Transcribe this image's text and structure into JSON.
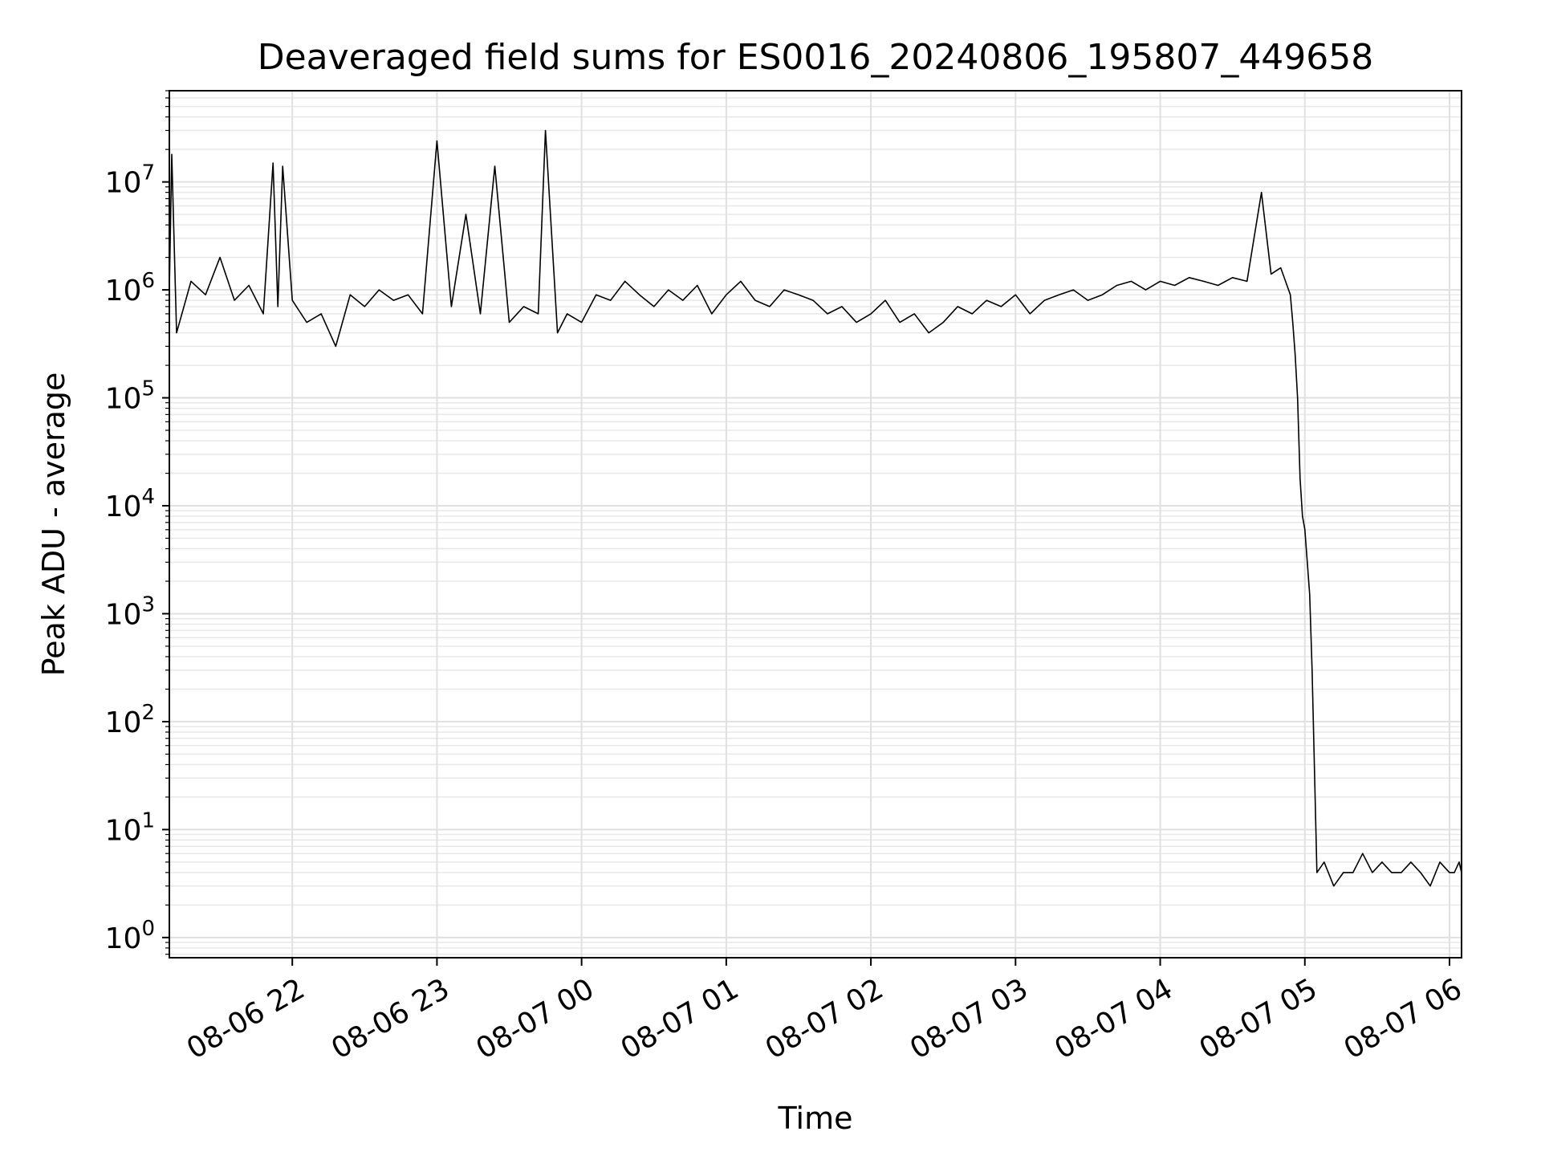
{
  "chart_data": {
    "type": "line",
    "title": "Deaveraged field sums for ES0016_20240806_195807_449658",
    "xlabel": "Time",
    "ylabel": "Peak ADU - average",
    "yscale": "log",
    "grid": true,
    "grid_minor": true,
    "xlim": [
      "2024-08-06 21:09",
      "2024-08-07 06:05"
    ],
    "ylim": [
      0.65,
      70000000
    ],
    "x_ticks": [
      "08-06 22",
      "08-06 23",
      "08-07 00",
      "08-07 01",
      "08-07 02",
      "08-07 03",
      "08-07 04",
      "08-07 05",
      "08-07 06"
    ],
    "y_ticks": [
      {
        "base": "10",
        "exp": "0"
      },
      {
        "base": "10",
        "exp": "1"
      },
      {
        "base": "10",
        "exp": "2"
      },
      {
        "base": "10",
        "exp": "3"
      },
      {
        "base": "10",
        "exp": "4"
      },
      {
        "base": "10",
        "exp": "5"
      },
      {
        "base": "10",
        "exp": "6"
      },
      {
        "base": "10",
        "exp": "7"
      }
    ],
    "line_color": "#000000",
    "series": [
      {
        "x": [
          "2024-08-06 21:09",
          "2024-08-06 21:10",
          "2024-08-06 21:12",
          "2024-08-06 21:18",
          "2024-08-06 21:24",
          "2024-08-06 21:30",
          "2024-08-06 21:36",
          "2024-08-06 21:42",
          "2024-08-06 21:48",
          "2024-08-06 21:52",
          "2024-08-06 21:54",
          "2024-08-06 21:56",
          "2024-08-06 22:00",
          "2024-08-06 22:06",
          "2024-08-06 22:12",
          "2024-08-06 22:18",
          "2024-08-06 22:24",
          "2024-08-06 22:30",
          "2024-08-06 22:36",
          "2024-08-06 22:42",
          "2024-08-06 22:48",
          "2024-08-06 22:54",
          "2024-08-06 23:00",
          "2024-08-06 23:06",
          "2024-08-06 23:12",
          "2024-08-06 23:18",
          "2024-08-06 23:24",
          "2024-08-06 23:30",
          "2024-08-06 23:36",
          "2024-08-06 23:42",
          "2024-08-06 23:45",
          "2024-08-06 23:50",
          "2024-08-06 23:54",
          "2024-08-07 00:00",
          "2024-08-07 00:06",
          "2024-08-07 00:12",
          "2024-08-07 00:18",
          "2024-08-07 00:24",
          "2024-08-07 00:30",
          "2024-08-07 00:36",
          "2024-08-07 00:42",
          "2024-08-07 00:48",
          "2024-08-07 00:54",
          "2024-08-07 01:00",
          "2024-08-07 01:06",
          "2024-08-07 01:12",
          "2024-08-07 01:18",
          "2024-08-07 01:24",
          "2024-08-07 01:30",
          "2024-08-07 01:36",
          "2024-08-07 01:42",
          "2024-08-07 01:48",
          "2024-08-07 01:54",
          "2024-08-07 02:00",
          "2024-08-07 02:06",
          "2024-08-07 02:12",
          "2024-08-07 02:18",
          "2024-08-07 02:24",
          "2024-08-07 02:30",
          "2024-08-07 02:36",
          "2024-08-07 02:42",
          "2024-08-07 02:48",
          "2024-08-07 02:54",
          "2024-08-07 03:00",
          "2024-08-07 03:06",
          "2024-08-07 03:12",
          "2024-08-07 03:18",
          "2024-08-07 03:24",
          "2024-08-07 03:30",
          "2024-08-07 03:36",
          "2024-08-07 03:42",
          "2024-08-07 03:48",
          "2024-08-07 03:54",
          "2024-08-07 04:00",
          "2024-08-07 04:06",
          "2024-08-07 04:12",
          "2024-08-07 04:18",
          "2024-08-07 04:24",
          "2024-08-07 04:30",
          "2024-08-07 04:36",
          "2024-08-07 04:42",
          "2024-08-07 04:46",
          "2024-08-07 04:50",
          "2024-08-07 04:52",
          "2024-08-07 04:54",
          "2024-08-07 04:55",
          "2024-08-07 04:56",
          "2024-08-07 04:57",
          "2024-08-07 04:58",
          "2024-08-07 04:59",
          "2024-08-07 05:00",
          "2024-08-07 05:01",
          "2024-08-07 05:02",
          "2024-08-07 05:03",
          "2024-08-07 05:05",
          "2024-08-07 05:08",
          "2024-08-07 05:12",
          "2024-08-07 05:16",
          "2024-08-07 05:20",
          "2024-08-07 05:24",
          "2024-08-07 05:28",
          "2024-08-07 05:32",
          "2024-08-07 05:36",
          "2024-08-07 05:40",
          "2024-08-07 05:44",
          "2024-08-07 05:48",
          "2024-08-07 05:52",
          "2024-08-07 05:56",
          "2024-08-07 06:00",
          "2024-08-07 06:02",
          "2024-08-07 06:04",
          "2024-08-07 06:05"
        ],
        "y": [
          1000000,
          18000000,
          400000,
          1200000,
          900000,
          2000000,
          800000,
          1100000,
          600000,
          15000000,
          700000,
          14000000,
          800000,
          500000,
          600000,
          300000,
          900000,
          700000,
          1000000,
          800000,
          900000,
          600000,
          24000000,
          700000,
          5000000,
          600000,
          14000000,
          500000,
          700000,
          600000,
          30000000,
          400000,
          600000,
          500000,
          900000,
          800000,
          1200000,
          900000,
          700000,
          1000000,
          800000,
          1100000,
          600000,
          900000,
          1200000,
          800000,
          700000,
          1000000,
          900000,
          800000,
          600000,
          700000,
          500000,
          600000,
          800000,
          500000,
          600000,
          400000,
          500000,
          700000,
          600000,
          800000,
          700000,
          900000,
          600000,
          800000,
          900000,
          1000000,
          800000,
          900000,
          1100000,
          1200000,
          1000000,
          1200000,
          1100000,
          1300000,
          1200000,
          1100000,
          1300000,
          1200000,
          8000000,
          1400000,
          1600000,
          1200000,
          900000,
          500000,
          250000,
          100000,
          18000,
          8000,
          6000,
          3000,
          1500,
          300,
          4,
          5,
          3,
          4,
          4,
          6,
          4,
          5,
          4,
          4,
          5,
          4,
          3,
          5,
          4,
          4,
          5,
          4
        ]
      }
    ]
  }
}
